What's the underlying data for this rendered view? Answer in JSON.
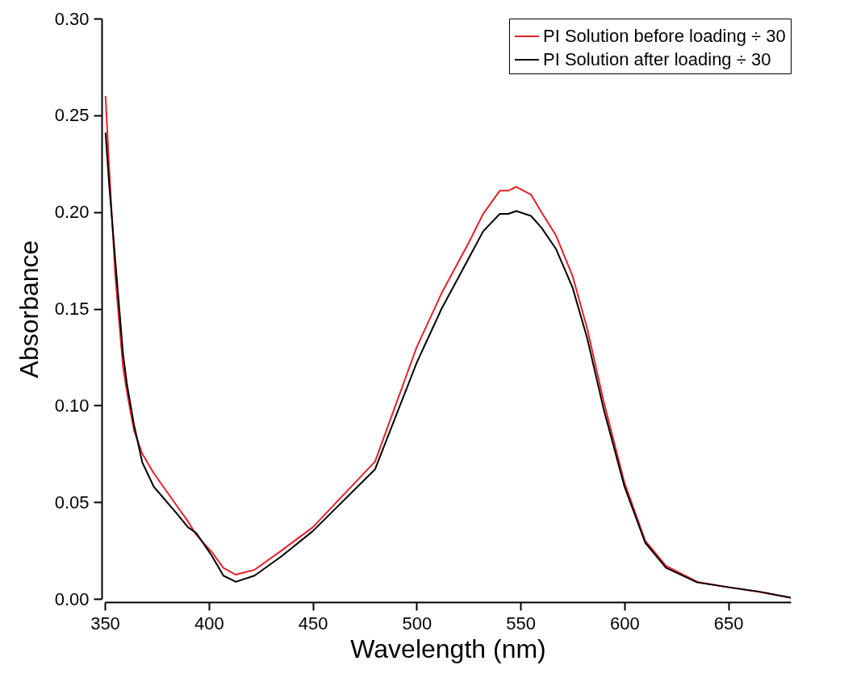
{
  "chart_data": {
    "type": "line",
    "xlabel": "Wavelength (nm)",
    "ylabel": "Absorbance",
    "xlim": [
      350,
      680
    ],
    "xticks": [
      350,
      400,
      450,
      500,
      550,
      600,
      650
    ],
    "ylim": [
      0,
      0.3
    ],
    "yticks": [
      {
        "value": 0,
        "label": "0.00"
      },
      {
        "value": 0.05,
        "label": "0.05"
      },
      {
        "value": 0.1,
        "label": "0.10"
      },
      {
        "value": 0.15,
        "label": "0.15"
      },
      {
        "value": 0.2,
        "label": "0.20"
      },
      {
        "value": 0.25,
        "label": "0.25"
      },
      {
        "value": 0.3,
        "label": "0.30"
      }
    ],
    "grid": false,
    "legend": "top right",
    "marker": "none",
    "line_style": "solid",
    "x": [
      350.3,
      352,
      355,
      358.7,
      360.6,
      364,
      368,
      373.5,
      384.7,
      390,
      394,
      401.6,
      407,
      413,
      422,
      435,
      450,
      480,
      500,
      512,
      525,
      532,
      540,
      544,
      548,
      555,
      560,
      567,
      575,
      582,
      590,
      600,
      610,
      620,
      635,
      650,
      665,
      680
    ],
    "series": [
      {
        "name": "PI Solution before loading ÷ 30",
        "color": "#e8202a",
        "values": [
          0.26,
          0.224,
          0.167,
          0.12,
          0.107,
          0.087,
          0.075,
          0.065,
          0.048,
          0.04,
          0.033,
          0.024,
          0.016,
          0.0125,
          0.015,
          0.025,
          0.037,
          0.071,
          0.13,
          0.158,
          0.184,
          0.199,
          0.211,
          0.211,
          0.213,
          0.209,
          0.2,
          0.188,
          0.167,
          0.14,
          0.102,
          0.06,
          0.03,
          0.017,
          0.0088,
          0.006,
          0.0035,
          0.0005
        ]
      },
      {
        "name": "PI Solution after loading ÷ 30",
        "color": "#000000",
        "values": [
          0.241,
          0.215,
          0.175,
          0.127,
          0.111,
          0.09,
          0.0705,
          0.058,
          0.044,
          0.037,
          0.034,
          0.022,
          0.012,
          0.0088,
          0.012,
          0.022,
          0.035,
          0.067,
          0.122,
          0.15,
          0.176,
          0.19,
          0.199,
          0.199,
          0.2005,
          0.198,
          0.192,
          0.181,
          0.161,
          0.135,
          0.098,
          0.058,
          0.029,
          0.016,
          0.0085,
          0.006,
          0.0037,
          0.0006
        ]
      }
    ]
  }
}
